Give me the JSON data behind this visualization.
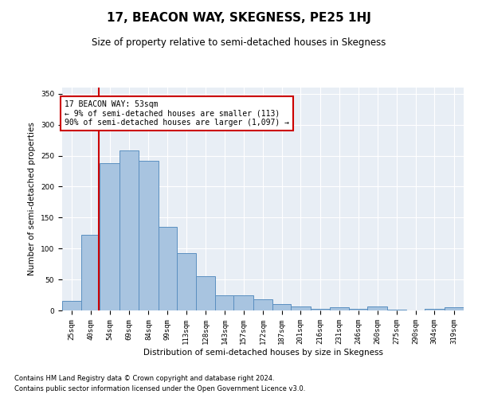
{
  "title": "17, BEACON WAY, SKEGNESS, PE25 1HJ",
  "subtitle": "Size of property relative to semi-detached houses in Skegness",
  "xlabel": "Distribution of semi-detached houses by size in Skegness",
  "ylabel": "Number of semi-detached properties",
  "footnote1": "Contains HM Land Registry data © Crown copyright and database right 2024.",
  "footnote2": "Contains public sector information licensed under the Open Government Licence v3.0.",
  "annotation_title": "17 BEACON WAY: 53sqm",
  "annotation_line1": "← 9% of semi-detached houses are smaller (113)",
  "annotation_line2": "90% of semi-detached houses are larger (1,097) →",
  "property_value": 53,
  "bar_labels": [
    "25sqm",
    "40sqm",
    "54sqm",
    "69sqm",
    "84sqm",
    "99sqm",
    "113sqm",
    "128sqm",
    "143sqm",
    "157sqm",
    "172sqm",
    "187sqm",
    "201sqm",
    "216sqm",
    "231sqm",
    "246sqm",
    "260sqm",
    "275sqm",
    "290sqm",
    "304sqm",
    "319sqm"
  ],
  "bar_values": [
    15,
    122,
    238,
    258,
    242,
    135,
    93,
    55,
    25,
    25,
    18,
    10,
    7,
    3,
    5,
    2,
    7,
    1,
    0,
    3,
    5
  ],
  "bar_edges": [
    25,
    40,
    54,
    69,
    84,
    99,
    113,
    128,
    143,
    157,
    172,
    187,
    201,
    216,
    231,
    246,
    260,
    275,
    290,
    304,
    319,
    334
  ],
  "bar_color": "#a8c4e0",
  "bar_edge_color": "#5a8fc0",
  "vline_color": "#cc0000",
  "vline_x": 53,
  "ylim": [
    0,
    360
  ],
  "yticks": [
    0,
    50,
    100,
    150,
    200,
    250,
    300,
    350
  ],
  "bg_color": "#e8eef5",
  "grid_color": "#ffffff",
  "title_fontsize": 11,
  "subtitle_fontsize": 8.5,
  "axis_label_fontsize": 7.5,
  "tick_fontsize": 6.5,
  "annotation_fontsize": 7,
  "footnote_fontsize": 6
}
